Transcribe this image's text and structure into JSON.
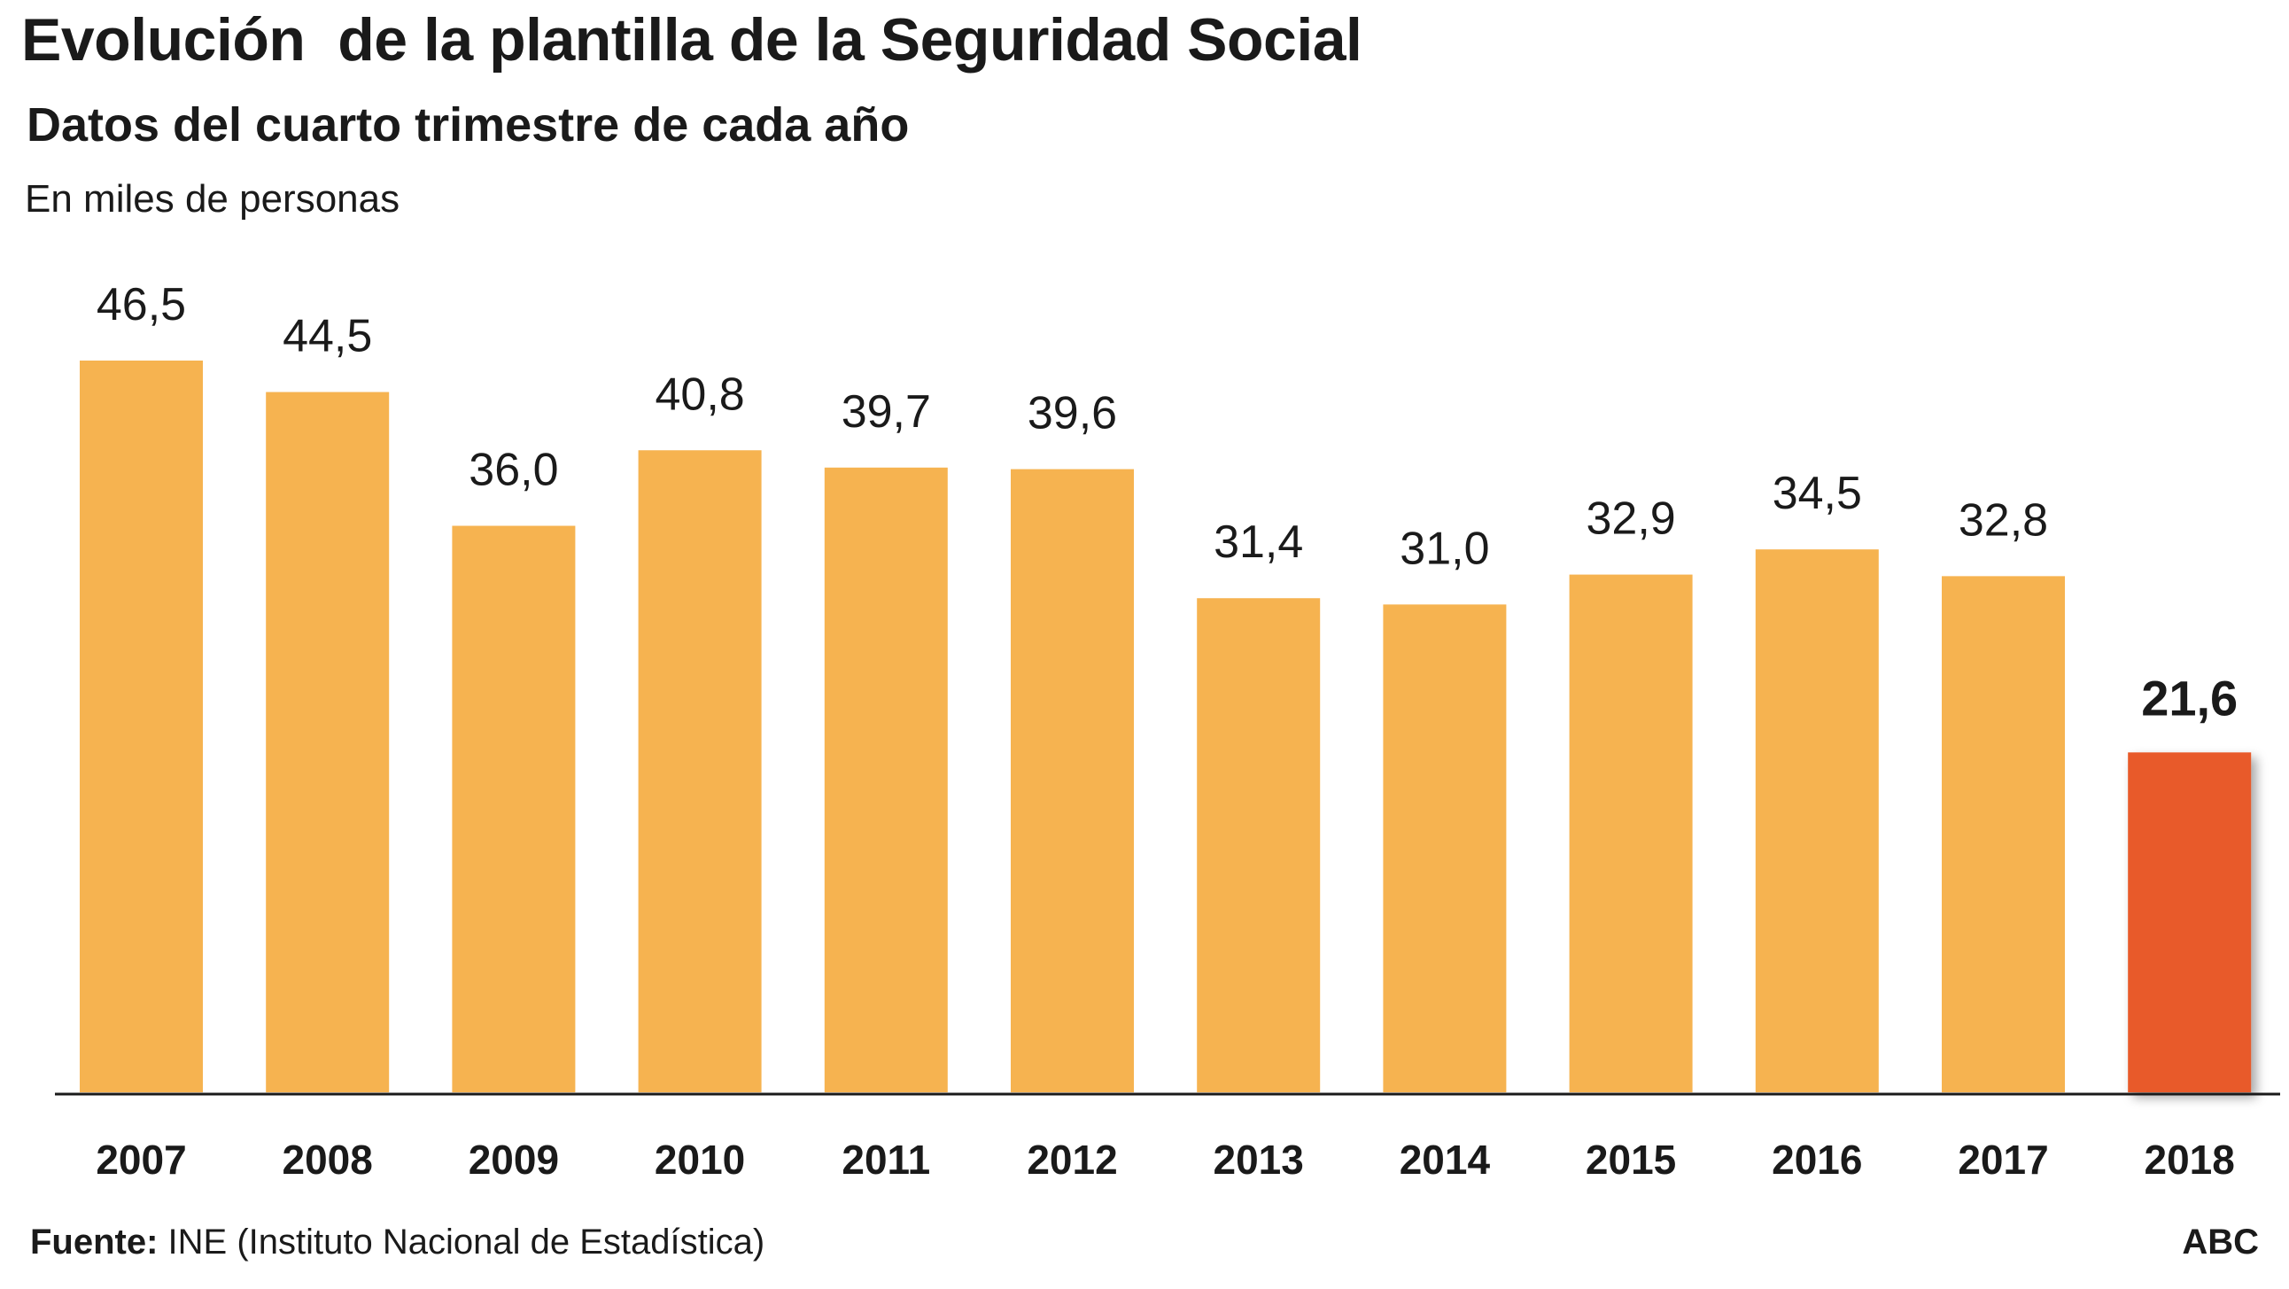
{
  "header": {
    "title": "Evolución  de la plantilla de la Seguridad Social",
    "subtitle": "Datos del cuarto trimestre de cada año",
    "unit": "En miles de personas"
  },
  "footer": {
    "source_label": "Fuente:",
    "source_text": " INE (Instituto Nacional de Estadística)",
    "brand": "ABC"
  },
  "colors": {
    "bar": "#F6B350",
    "highlight": "#E85A2A",
    "axis": "#1a1a1a"
  },
  "chart_data": {
    "type": "bar",
    "title": "Evolución  de la plantilla de la Seguridad Social",
    "subtitle": "Datos del cuarto trimestre de cada año",
    "ylabel": "En miles de personas",
    "categories": [
      "2007",
      "2008",
      "2009",
      "2010",
      "2011",
      "2012",
      "2013",
      "2014",
      "2015",
      "2016",
      "2017",
      "2018"
    ],
    "values": [
      46.5,
      44.5,
      36.0,
      40.8,
      39.7,
      39.6,
      31.4,
      31.0,
      32.9,
      34.5,
      32.8,
      21.6
    ],
    "value_labels": [
      "46,5",
      "44,5",
      "36,0",
      "40,8",
      "39,7",
      "39,6",
      "31,4",
      "31,0",
      "32,9",
      "34,5",
      "32,8",
      "21,6"
    ],
    "highlight_index": 11,
    "ylim": [
      0,
      46.5
    ],
    "grid": false,
    "legend": "none"
  }
}
